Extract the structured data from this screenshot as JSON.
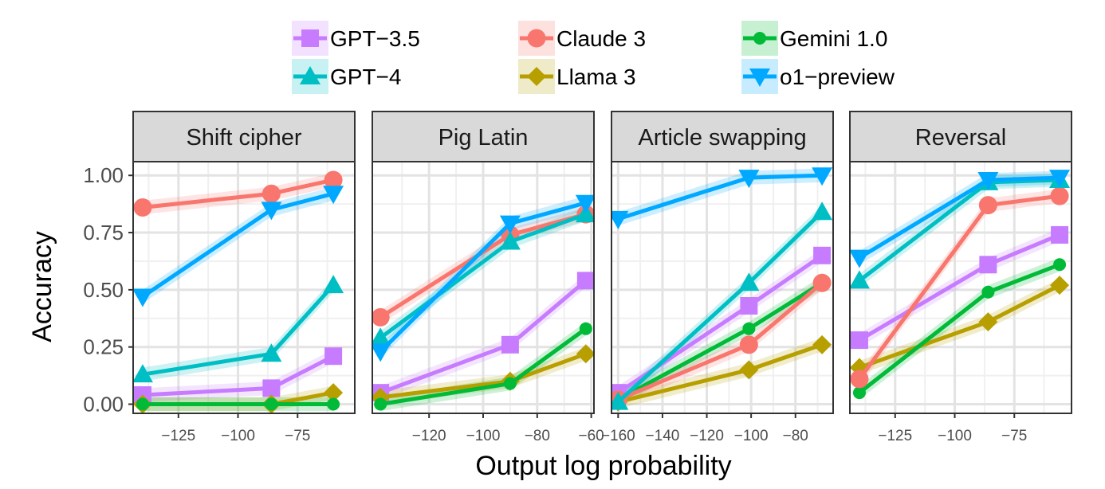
{
  "chart_data": {
    "type": "line",
    "xlabel": "Output log probability",
    "ylabel": "Accuracy",
    "ylim": [
      0,
      1
    ],
    "y_ticks": [
      0.0,
      0.25,
      0.5,
      0.75,
      1.0
    ],
    "y_tick_labels": [
      "0.00",
      "0.25",
      "0.50",
      "0.75",
      "1.00"
    ],
    "legend_position": "top",
    "series_styles": [
      {
        "name": "GPT−3.5",
        "color": "#c77cff",
        "marker": "square"
      },
      {
        "name": "Claude 3",
        "color": "#f8766d",
        "marker": "circle"
      },
      {
        "name": "Gemini 1.0",
        "color": "#00ba38",
        "marker": "dot"
      },
      {
        "name": "GPT−4",
        "color": "#00bfc4",
        "marker": "triangle-up"
      },
      {
        "name": "Llama 3",
        "color": "#b79f00",
        "marker": "diamond"
      },
      {
        "name": "o1−preview",
        "color": "#00a9ff",
        "marker": "triangle-down"
      }
    ],
    "panels": [
      {
        "title": "Shift cipher",
        "xlim": [
          -144,
          -51
        ],
        "x_ticks": [
          -125,
          -100,
          -75
        ],
        "x_tick_labels": [
          "−125",
          "−100",
          "−75"
        ],
        "series": [
          {
            "name": "GPT−3.5",
            "x": [
              -140,
              -86,
              -60
            ],
            "y": [
              0.04,
              0.07,
              0.21
            ]
          },
          {
            "name": "GPT−4",
            "x": [
              -140,
              -86,
              -60
            ],
            "y": [
              0.13,
              0.22,
              0.52
            ]
          },
          {
            "name": "Claude 3",
            "x": [
              -140,
              -86,
              -60
            ],
            "y": [
              0.86,
              0.92,
              0.98
            ]
          },
          {
            "name": "Llama 3",
            "x": [
              -140,
              -86,
              -60
            ],
            "y": [
              0.0,
              0.0,
              0.05
            ]
          },
          {
            "name": "Gemini 1.0",
            "x": [
              -140,
              -86,
              -60
            ],
            "y": [
              0.0,
              0.0,
              0.0
            ]
          },
          {
            "name": "o1−preview",
            "x": [
              -140,
              -86,
              -60
            ],
            "y": [
              0.47,
              0.85,
              0.92
            ]
          }
        ]
      },
      {
        "title": "Pig Latin",
        "xlim": [
          -141,
          -59
        ],
        "x_ticks": [
          -120,
          -100,
          -80,
          -60
        ],
        "x_tick_labels": [
          "−120",
          "−100",
          "−80",
          "−60"
        ],
        "series": [
          {
            "name": "GPT−3.5",
            "x": [
              -138,
              -90,
              -62
            ],
            "y": [
              0.05,
              0.26,
              0.54
            ]
          },
          {
            "name": "GPT−4",
            "x": [
              -138,
              -90,
              -62
            ],
            "y": [
              0.29,
              0.71,
              0.83
            ]
          },
          {
            "name": "Claude 3",
            "x": [
              -138,
              -90,
              -62
            ],
            "y": [
              0.38,
              0.74,
              0.83
            ]
          },
          {
            "name": "Llama 3",
            "x": [
              -138,
              -90,
              -62
            ],
            "y": [
              0.03,
              0.1,
              0.22
            ]
          },
          {
            "name": "Gemini 1.0",
            "x": [
              -138,
              -90,
              -62
            ],
            "y": [
              0.0,
              0.09,
              0.33
            ]
          },
          {
            "name": "o1−preview",
            "x": [
              -138,
              -90,
              -62
            ],
            "y": [
              0.23,
              0.79,
              0.88
            ]
          }
        ]
      },
      {
        "title": "Article swapping",
        "xlim": [
          -163,
          -63
        ],
        "x_ticks": [
          -160,
          -140,
          -120,
          -100,
          -80
        ],
        "x_tick_labels": [
          "−160",
          "−140",
          "−120",
          "−100",
          "−80"
        ],
        "series": [
          {
            "name": "GPT−3.5",
            "x": [
              -160,
              -101,
              -68
            ],
            "y": [
              0.05,
              0.43,
              0.65
            ]
          },
          {
            "name": "GPT−4",
            "x": [
              -160,
              -101,
              -68
            ],
            "y": [
              0.01,
              0.53,
              0.84
            ]
          },
          {
            "name": "Claude 3",
            "x": [
              -160,
              -101,
              -68
            ],
            "y": [
              0.02,
              0.26,
              0.53
            ]
          },
          {
            "name": "Llama 3",
            "x": [
              -160,
              -101,
              -68
            ],
            "y": [
              0.01,
              0.15,
              0.26
            ]
          },
          {
            "name": "Gemini 1.0",
            "x": [
              -160,
              -101,
              -68
            ],
            "y": [
              0.02,
              0.33,
              0.53
            ]
          },
          {
            "name": "o1−preview",
            "x": [
              -160,
              -101,
              -68
            ],
            "y": [
              0.81,
              0.99,
              1.0
            ]
          }
        ]
      },
      {
        "title": "Reversal",
        "xlim": [
          -144,
          -51
        ],
        "x_ticks": [
          -125,
          -100,
          -75
        ],
        "x_tick_labels": [
          "−125",
          "−100",
          "−75"
        ],
        "series": [
          {
            "name": "GPT−3.5",
            "x": [
              -140,
              -86,
              -56
            ],
            "y": [
              0.28,
              0.61,
              0.74
            ]
          },
          {
            "name": "GPT−4",
            "x": [
              -140,
              -86,
              -56
            ],
            "y": [
              0.54,
              0.97,
              0.98
            ]
          },
          {
            "name": "Claude 3",
            "x": [
              -140,
              -86,
              -56
            ],
            "y": [
              0.11,
              0.87,
              0.91
            ]
          },
          {
            "name": "Llama 3",
            "x": [
              -140,
              -86,
              -56
            ],
            "y": [
              0.16,
              0.36,
              0.52
            ]
          },
          {
            "name": "Gemini 1.0",
            "x": [
              -140,
              -86,
              -56
            ],
            "y": [
              0.05,
              0.49,
              0.61
            ]
          },
          {
            "name": "o1−preview",
            "x": [
              -140,
              -86,
              -56
            ],
            "y": [
              0.64,
              0.98,
              0.99
            ]
          }
        ]
      }
    ]
  }
}
